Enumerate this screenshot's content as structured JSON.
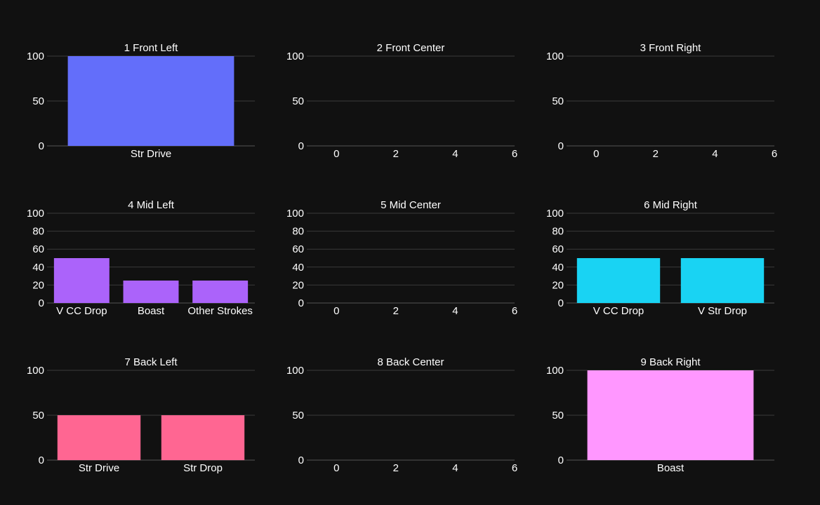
{
  "background": "#111111",
  "grid_color": "#3a3a3a",
  "axis_line_color": "#555555",
  "chart_data": [
    {
      "type": "bar",
      "title": "1 Front Left",
      "color": "#636efa",
      "categories": [
        "Str Drive"
      ],
      "values": [
        100
      ],
      "ylim": [
        0,
        100
      ],
      "yticks": [
        0,
        50,
        100
      ]
    },
    {
      "type": "bar",
      "title": "2 Front Center",
      "color": "#636efa",
      "categories": [],
      "values": [],
      "ylim": [
        0,
        100
      ],
      "yticks": [
        0,
        50,
        100
      ],
      "xlim": [
        -1,
        6
      ],
      "xticks": [
        0,
        2,
        4,
        6
      ]
    },
    {
      "type": "bar",
      "title": "3 Front Right",
      "color": "#636efa",
      "categories": [],
      "values": [],
      "ylim": [
        0,
        100
      ],
      "yticks": [
        0,
        50,
        100
      ],
      "xlim": [
        -1,
        6
      ],
      "xticks": [
        0,
        2,
        4,
        6
      ]
    },
    {
      "type": "bar",
      "title": "4 Mid Left",
      "color": "#ab63fa",
      "categories": [
        "V CC Drop",
        "Boast",
        "Other Strokes"
      ],
      "values": [
        50,
        25,
        25
      ],
      "ylim": [
        0,
        100
      ],
      "yticks": [
        0,
        20,
        40,
        60,
        80,
        100
      ]
    },
    {
      "type": "bar",
      "title": "5 Mid Center",
      "color": "#ab63fa",
      "categories": [],
      "values": [],
      "ylim": [
        0,
        100
      ],
      "yticks": [
        0,
        20,
        40,
        60,
        80,
        100
      ],
      "xlim": [
        -1,
        6
      ],
      "xticks": [
        0,
        2,
        4,
        6
      ]
    },
    {
      "type": "bar",
      "title": "6 Mid Right",
      "color": "#19d3f3",
      "categories": [
        "V CC Drop",
        "V Str Drop"
      ],
      "values": [
        50,
        50
      ],
      "ylim": [
        0,
        100
      ],
      "yticks": [
        0,
        20,
        40,
        60,
        80,
        100
      ]
    },
    {
      "type": "bar",
      "title": "7 Back Left",
      "color": "#ff6692",
      "categories": [
        "Str Drive",
        "Str Drop"
      ],
      "values": [
        50,
        50
      ],
      "ylim": [
        0,
        100
      ],
      "yticks": [
        0,
        50,
        100
      ]
    },
    {
      "type": "bar",
      "title": "8 Back Center",
      "color": "#ff6692",
      "categories": [],
      "values": [],
      "ylim": [
        0,
        100
      ],
      "yticks": [
        0,
        50,
        100
      ],
      "xlim": [
        -1,
        6
      ],
      "xticks": [
        0,
        2,
        4,
        6
      ]
    },
    {
      "type": "bar",
      "title": "9 Back Right",
      "color": "#ff97ff",
      "categories": [
        "Boast"
      ],
      "values": [
        100
      ],
      "ylim": [
        0,
        100
      ],
      "yticks": [
        0,
        50,
        100
      ]
    }
  ]
}
